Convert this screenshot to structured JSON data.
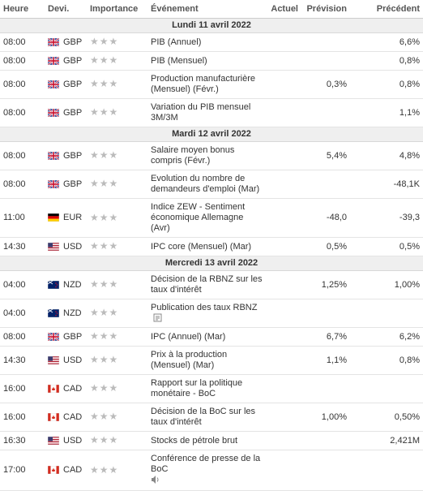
{
  "header": {
    "columns": [
      "Heure",
      "Devi.",
      "Importance",
      "Événement",
      "Actuel",
      "Prévision",
      "Précédent"
    ]
  },
  "sections": [
    {
      "date": "Lundi 11 avril 2022",
      "rows": [
        {
          "time": "08:00",
          "currency": "GBP",
          "event": "PIB (Annuel)",
          "actual": null,
          "forecast": null,
          "previous": "6,6%"
        },
        {
          "time": "08:00",
          "currency": "GBP",
          "event": "PIB (Mensuel)",
          "actual": null,
          "forecast": null,
          "previous": "0,8%"
        },
        {
          "time": "08:00",
          "currency": "GBP",
          "event": "Production manufacturière (Mensuel) (Févr.)",
          "actual": null,
          "forecast": "0,3%",
          "previous": "0,8%"
        },
        {
          "time": "08:00",
          "currency": "GBP",
          "event": "Variation du PIB mensuel 3M/3M",
          "actual": null,
          "forecast": null,
          "previous": "1,1%"
        }
      ]
    },
    {
      "date": "Mardi 12 avril 2022",
      "rows": [
        {
          "time": "08:00",
          "currency": "GBP",
          "event": "Salaire moyen bonus compris (Févr.)",
          "actual": null,
          "forecast": "5,4%",
          "previous": "4,8%"
        },
        {
          "time": "08:00",
          "currency": "GBP",
          "event": "Evolution du nombre de demandeurs d'emploi (Mar)",
          "actual": null,
          "forecast": null,
          "previous": "-48,1K"
        },
        {
          "time": "11:00",
          "currency": "EUR",
          "event": "Indice ZEW - Sentiment économique Allemagne (Avr)",
          "actual": null,
          "forecast": "-48,0",
          "previous": "-39,3"
        },
        {
          "time": "14:30",
          "currency": "USD",
          "event": "IPC core (Mensuel) (Mar)",
          "actual": null,
          "forecast": "0,5%",
          "previous": "0,5%"
        }
      ]
    },
    {
      "date": "Mercredi 13 avril 2022",
      "rows": [
        {
          "time": "04:00",
          "currency": "NZD",
          "event": "Décision de la RBNZ sur les taux d'intérêt",
          "actual": null,
          "forecast": "1,25%",
          "previous": "1,00%"
        },
        {
          "time": "04:00",
          "currency": "NZD",
          "event": "Publication des taux RBNZ",
          "actual": null,
          "forecast": null,
          "previous": null
        },
        {
          "time": "08:00",
          "currency": "GBP",
          "event": "IPC (Annuel) (Mar)",
          "actual": null,
          "forecast": "6,7%",
          "previous": "6,2%"
        },
        {
          "time": "14:30",
          "currency": "USD",
          "event": "Prix à la production (Mensuel) (Mar)",
          "actual": null,
          "forecast": "1,1%",
          "previous": "0,8%"
        },
        {
          "time": "16:00",
          "currency": "CAD",
          "event": "Rapport sur la politique monétaire - BoC",
          "actual": null,
          "forecast": null,
          "previous": null
        },
        {
          "time": "16:00",
          "currency": "CAD",
          "event": "Décision de la BoC sur les taux d'intérêt",
          "actual": null,
          "forecast": "1,00%",
          "previous": "0,50%"
        },
        {
          "time": "16:30",
          "currency": "USD",
          "event": "Stocks de pétrole brut",
          "actual": null,
          "forecast": null,
          "previous": "2,421M"
        },
        {
          "time": "17:00",
          "currency": "CAD",
          "event": "Conférence de presse de la BoC",
          "actual": null,
          "forecast": null,
          "previous": null
        }
      ]
    }
  ]
}
